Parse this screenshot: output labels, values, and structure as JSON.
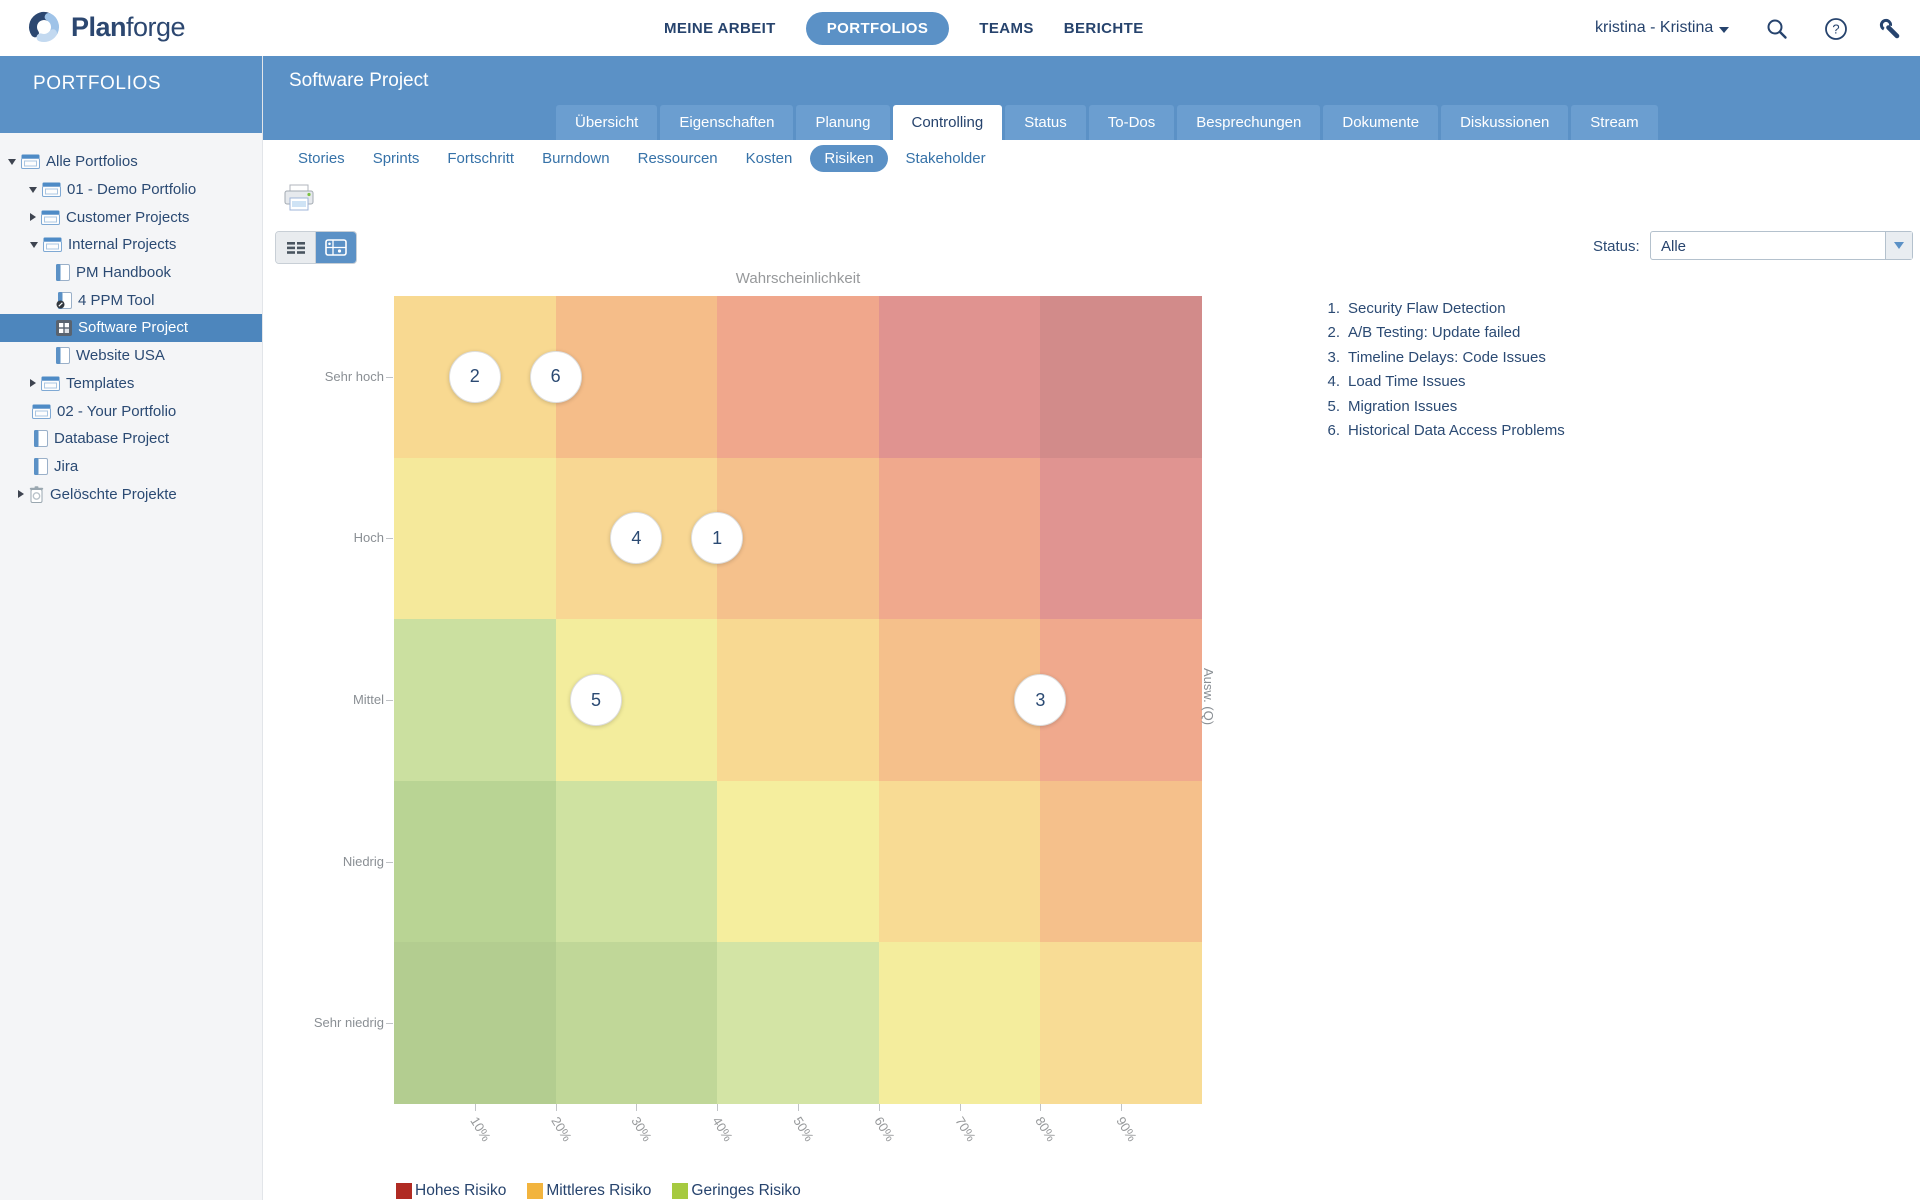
{
  "topbar": {
    "logo_bold": "Plan",
    "logo_light": "forge",
    "nav": [
      {
        "label": "MEINE ARBEIT",
        "active": false
      },
      {
        "label": "PORTFOLIOS",
        "active": true
      },
      {
        "label": "TEAMS",
        "active": false
      },
      {
        "label": "BERICHTE",
        "active": false
      }
    ],
    "user": "kristina - Kristina"
  },
  "sidebar": {
    "title": "PORTFOLIOS",
    "tree": [
      {
        "label": "Alle Portfolios",
        "arrow": "down",
        "icon": "folder",
        "indent": 24,
        "selected": false
      },
      {
        "label": "01 - Demo Portfolio",
        "arrow": "down",
        "icon": "folder",
        "indent": 45,
        "selected": false
      },
      {
        "label": "Customer Projects",
        "arrow": "right",
        "icon": "folder",
        "indent": 46,
        "selected": false
      },
      {
        "label": "Internal Projects",
        "arrow": "down",
        "icon": "folder",
        "indent": 46,
        "selected": false
      },
      {
        "label": "PM Handbook",
        "arrow": "none",
        "icon": "project",
        "indent": 56,
        "selected": false
      },
      {
        "label": "4 PPM Tool",
        "arrow": "none",
        "icon": "project-edit",
        "indent": 56,
        "selected": false
      },
      {
        "label": "Software Project",
        "arrow": "none",
        "icon": "project-board",
        "indent": 56,
        "selected": true
      },
      {
        "label": "Website USA",
        "arrow": "none",
        "icon": "project",
        "indent": 56,
        "selected": false
      },
      {
        "label": "Templates",
        "arrow": "right",
        "icon": "folder",
        "indent": 46,
        "selected": false
      },
      {
        "label": "02 - Your Portfolio",
        "arrow": "none",
        "icon": "folder",
        "indent": 32,
        "selected": false
      },
      {
        "label": "Database Project",
        "arrow": "none",
        "icon": "project",
        "indent": 34,
        "selected": false
      },
      {
        "label": "Jira",
        "arrow": "none",
        "icon": "project",
        "indent": 34,
        "selected": false
      },
      {
        "label": "Gelöschte Projekte",
        "arrow": "right",
        "icon": "trash",
        "indent": 34,
        "selected": false
      }
    ]
  },
  "header": {
    "title": "Software Project",
    "tabs": [
      {
        "label": "Übersicht",
        "active": false
      },
      {
        "label": "Eigenschaften",
        "active": false
      },
      {
        "label": "Planung",
        "active": false
      },
      {
        "label": "Controlling",
        "active": true
      },
      {
        "label": "Status",
        "active": false
      },
      {
        "label": "To-Dos",
        "active": false
      },
      {
        "label": "Besprechungen",
        "active": false
      },
      {
        "label": "Dokumente",
        "active": false
      },
      {
        "label": "Diskussionen",
        "active": false
      },
      {
        "label": "Stream",
        "active": false
      }
    ],
    "subtabs": [
      {
        "label": "Stories",
        "active": false
      },
      {
        "label": "Sprints",
        "active": false
      },
      {
        "label": "Fortschritt",
        "active": false
      },
      {
        "label": "Burndown",
        "active": false
      },
      {
        "label": "Ressourcen",
        "active": false
      },
      {
        "label": "Kosten",
        "active": false
      },
      {
        "label": "Risiken",
        "active": true
      },
      {
        "label": "Stakeholder",
        "active": false
      }
    ]
  },
  "toolbar": {
    "status_label": "Status:",
    "status_value": "Alle"
  },
  "chart_data": {
    "type": "heatmap",
    "title": "Wahrscheinlichkeit",
    "right_axis_label": "Ausw. (Q)",
    "y_labels": [
      "Sehr hoch",
      "Hoch",
      "Mittel",
      "Niedrig",
      "Sehr niedrig"
    ],
    "x_labels": [
      "10%",
      "20%",
      "30%",
      "40%",
      "50%",
      "60%",
      "70%",
      "80%",
      "90%"
    ],
    "cell_colors": [
      [
        "#f8d991",
        "#f5bd89",
        "#f0a78c",
        "#e09390",
        "#d28b8a"
      ],
      [
        "#f5e99b",
        "#f8d793",
        "#f5c18c",
        "#f0a98d",
        "#e09491"
      ],
      [
        "#cbe0a0",
        "#f3ed9d",
        "#f8d992",
        "#f5c08b",
        "#f0a98d"
      ],
      [
        "#b9d494",
        "#cfe2a1",
        "#f5ee9e",
        "#f8db94",
        "#f5c08b"
      ],
      [
        "#b3cd90",
        "#c0d798",
        "#d3e4a5",
        "#f4ed9d",
        "#f8dc95"
      ]
    ],
    "points": [
      {
        "id": 1,
        "x_pct": 40,
        "impact": "Hoch"
      },
      {
        "id": 2,
        "x_pct": 10,
        "impact": "Sehr hoch"
      },
      {
        "id": 3,
        "x_pct": 80,
        "impact": "Mittel"
      },
      {
        "id": 4,
        "x_pct": 30,
        "impact": "Hoch"
      },
      {
        "id": 5,
        "x_pct": 25,
        "impact": "Mittel"
      },
      {
        "id": 6,
        "x_pct": 20,
        "impact": "Sehr hoch"
      }
    ],
    "legend": [
      {
        "label": "Hohes Risiko",
        "color": "#b02b23"
      },
      {
        "label": "Mittleres Risiko",
        "color": "#f2b43e"
      },
      {
        "label": "Geringes Risiko",
        "color": "#a6ca40"
      }
    ]
  },
  "risk_list": [
    "Security Flaw Detection",
    "A/B Testing: Update failed",
    "Timeline Delays: Code Issues",
    "Load Time Issues",
    "Migration Issues",
    "Historical Data Access Problems"
  ],
  "colors": {
    "accent_blue": "#5b91c6",
    "tab_blue": "#6b9ed0",
    "selected_row_blue": "#4d86bd",
    "navy_text": "#26436d",
    "tree_text": "#2b4a73",
    "axis_gray": "#8a8f94",
    "sidebar_bg": "#f4f5f7"
  }
}
